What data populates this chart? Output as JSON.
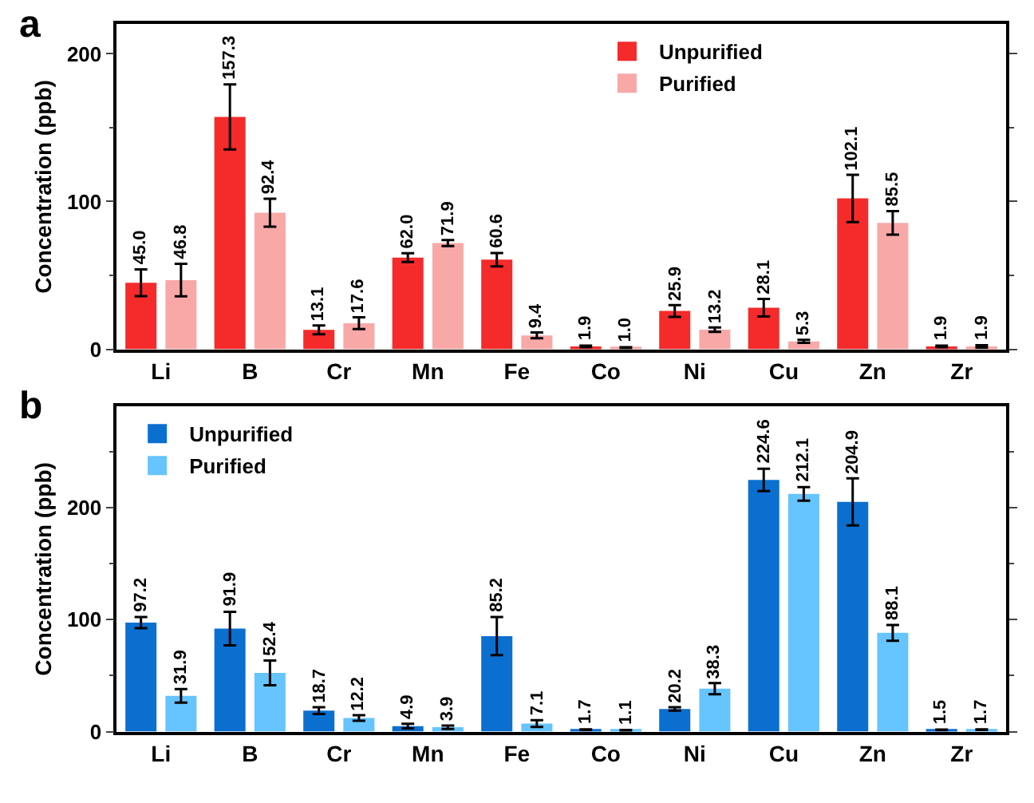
{
  "chart_data": [
    {
      "type": "bar",
      "annotations": [
        "a"
      ],
      "ylabel": "Concentration (ppb)",
      "categories": [
        "Li",
        "B",
        "Cr",
        "Mn",
        "Fe",
        "Co",
        "Ni",
        "Cu",
        "Zn",
        "Zr"
      ],
      "ylim": [
        0,
        220
      ],
      "yticks": [
        0,
        100,
        200
      ],
      "legend": "top right",
      "series": [
        {
          "name": "Unpurified",
          "color": "#f52a2a",
          "values": [
            45.0,
            157.3,
            13.1,
            62.0,
            60.6,
            1.9,
            25.9,
            28.1,
            102.1,
            1.9
          ],
          "errors": [
            9,
            22,
            3,
            3,
            4.5,
            0.5,
            4,
            6,
            16,
            0.5
          ],
          "value_labels": [
            "45.0",
            "157.3",
            "13.1",
            "62.0",
            "60.6",
            "1.9",
            "25.9",
            "28.1",
            "102.1",
            "1.9"
          ]
        },
        {
          "name": "Purified",
          "color": "#f9a8a8",
          "values": [
            46.8,
            92.4,
            17.6,
            71.9,
            9.4,
            1.0,
            13.2,
            5.3,
            85.5,
            1.9
          ],
          "errors": [
            11,
            9.5,
            4,
            2,
            2,
            0.3,
            1.5,
            1,
            8,
            0.8
          ],
          "value_labels": [
            "46.8",
            "92.4",
            "17.6",
            "71.9",
            "9.4",
            "1.0",
            "13.2",
            "5.3",
            "85.5",
            "1.9"
          ]
        }
      ]
    },
    {
      "type": "bar",
      "annotations": [
        "b"
      ],
      "ylabel": "Concentration (ppb)",
      "categories": [
        "Li",
        "B",
        "Cr",
        "Mn",
        "Fe",
        "Co",
        "Ni",
        "Cu",
        "Zn",
        "Zr"
      ],
      "ylim": [
        0,
        290
      ],
      "yticks": [
        0,
        100,
        200
      ],
      "legend": "top left",
      "series": [
        {
          "name": "Unpurified",
          "color": "#0b6fd0",
          "values": [
            97.2,
            91.9,
            18.7,
            4.9,
            85.2,
            1.7,
            20.2,
            224.6,
            204.9,
            1.5
          ],
          "errors": [
            5,
            15,
            3,
            2,
            17,
            0.3,
            1.5,
            10,
            21,
            0.3
          ],
          "value_labels": [
            "97.2",
            "91.9",
            "18.7",
            "4.9",
            "85.2",
            "1.7",
            "20.2",
            "224.6",
            "204.9",
            "1.5"
          ]
        },
        {
          "name": "Purified",
          "color": "#66c4ff",
          "values": [
            31.9,
            52.4,
            12.2,
            3.9,
            7.1,
            1.1,
            38.3,
            212.1,
            88.1,
            1.7
          ],
          "errors": [
            6,
            11,
            2.5,
            1.5,
            3,
            0.3,
            5,
            6,
            7,
            0.3
          ],
          "value_labels": [
            "31.9",
            "52.4",
            "12.2",
            "3.9",
            "7.1",
            "1.1",
            "38.3",
            "212.1",
            "88.1",
            "1.7"
          ]
        }
      ]
    }
  ]
}
